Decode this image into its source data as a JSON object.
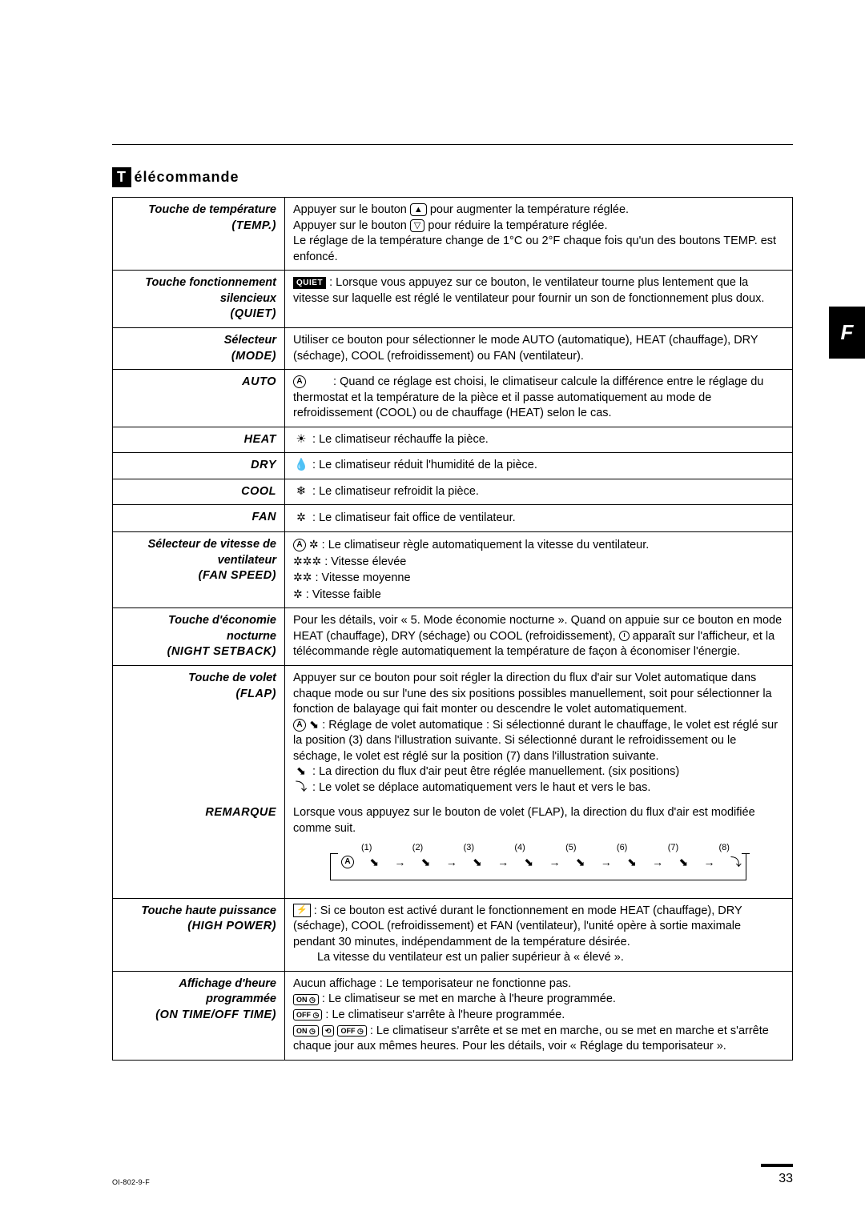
{
  "sideTab": "F",
  "title": {
    "box": "T",
    "rest": "élécommande"
  },
  "footer": {
    "docid": "OI-802-9-F",
    "page": "33"
  },
  "rows": {
    "temp": {
      "category": "Touche de température",
      "label": "(TEMP.)",
      "line1a": "Appuyer sur le bouton",
      "line1b": "pour augmenter la température réglée.",
      "line2a": "Appuyer sur le bouton",
      "line2b": "pour réduire la température réglée.",
      "line3": "Le réglage de la température change de 1°C ou 2°F chaque fois qu'un des boutons TEMP. est enfoncé."
    },
    "quiet": {
      "category": "Touche fonctionnement silencieux",
      "label": "(QUIET)",
      "badge": "QUIET",
      "text": ": Lorsque vous appuyez sur ce bouton, le ventilateur tourne plus lentement que la vitesse sur laquelle est réglé le ventilateur pour fournir un son de fonctionnement plus doux."
    },
    "mode": {
      "category": "Sélecteur",
      "label": "(MODE)",
      "desc": "Utiliser ce bouton pour sélectionner le mode AUTO (automatique), HEAT (chauffage), DRY (séchage), COOL (refroidissement) ou FAN (ventilateur).",
      "auto": {
        "label": "AUTO",
        "icon": "A",
        "text": ": Quand ce réglage est choisi, le climatiseur calcule la différence entre le réglage du thermostat et la température de la pièce et il passe automatiquement au mode de refroidissement (COOL) ou de chauffage (HEAT) selon le cas."
      },
      "heat": {
        "label": "HEAT",
        "icon": "☀",
        "text": ": Le climatiseur réchauffe la pièce."
      },
      "dry": {
        "label": "DRY",
        "icon": "💧",
        "text": ": Le climatiseur réduit l'humidité de la pièce."
      },
      "cool": {
        "label": "COOL",
        "icon": "❄",
        "text": ": Le climatiseur refroidit la pièce."
      },
      "fan": {
        "label": "FAN",
        "icon": "✲",
        "text": ": Le climatiseur fait office de ventilateur."
      }
    },
    "fanspeed": {
      "category": "Sélecteur de vitesse de ventilateur",
      "label": "(FAN SPEED)",
      "l1": ": Le climatiseur règle automatiquement la vitesse du ventilateur.",
      "l2": ": Vitesse élevée",
      "l3": ": Vitesse moyenne",
      "l4": ": Vitesse faible"
    },
    "night": {
      "category": "Touche d'économie nocturne",
      "label": "(NIGHT SETBACK)",
      "text": "Pour les détails, voir « 5. Mode économie nocturne ». Quand on appuie sur ce bouton en mode HEAT (chauffage), DRY (séchage) ou COOL (refroidissement),",
      "text2": "apparaît sur l'afficheur, et la télécommande règle automatiquement la température de façon à économiser l'énergie."
    },
    "flap": {
      "category": "Touche de volet",
      "label": "(FLAP)",
      "intro": "Appuyer sur ce bouton pour soit régler la direction du flux d'air sur Volet automatique dans chaque mode ou sur l'une des six positions possibles manuellement, soit pour sélectionner la fonction de balayage qui fait monter ou descendre le volet automatiquement.",
      "b1": ": Réglage de volet automatique : Si sélectionné durant le chauffage, le volet est réglé sur la position (3) dans l'illustration suivante. Si sélectionné durant le refroidissement ou le séchage, le volet est réglé sur la position (7) dans l'illustration suivante.",
      "b2": ": La direction du flux d'air peut être réglée manuellement. (six positions)",
      "b3": ": Le volet se déplace automatiquement vers le haut et vers le bas.",
      "remarkLabel": "REMARQUE",
      "remark": "Lorsque vous appuyez sur le bouton de volet (FLAP), la direction du flux d'air est modifiée comme suit.",
      "positions": [
        "(1)",
        "(2)",
        "(3)",
        "(4)",
        "(5)",
        "(6)",
        "(7)",
        "(8)"
      ]
    },
    "hipower": {
      "category": "Touche haute puissance",
      "label": "(HIGH POWER)",
      "line1": ": Si ce bouton est activé durant le fonctionnement en mode HEAT (chauffage), DRY (séchage), COOL (refroidissement) et FAN (ventilateur), l'unité opère à sortie maximale pendant 30 minutes, indépendamment de la température désirée.",
      "line2": "La vitesse du ventilateur est un palier supérieur à « élevé »."
    },
    "timer": {
      "category": "Affichage d'heure programmée",
      "label": "(ON TIME/OFF TIME)",
      "l1": "Aucun affichage : Le temporisateur ne fonctionne pas.",
      "l2": ": Le climatiseur se met en marche à l'heure programmée.",
      "l3": ": Le climatiseur s'arrête à l'heure programmée.",
      "l4": ": Le climatiseur s'arrête et se met en marche, ou se met en marche et s'arrête chaque jour aux mêmes heures. Pour les détails, voir « Réglage du temporisateur »."
    }
  }
}
